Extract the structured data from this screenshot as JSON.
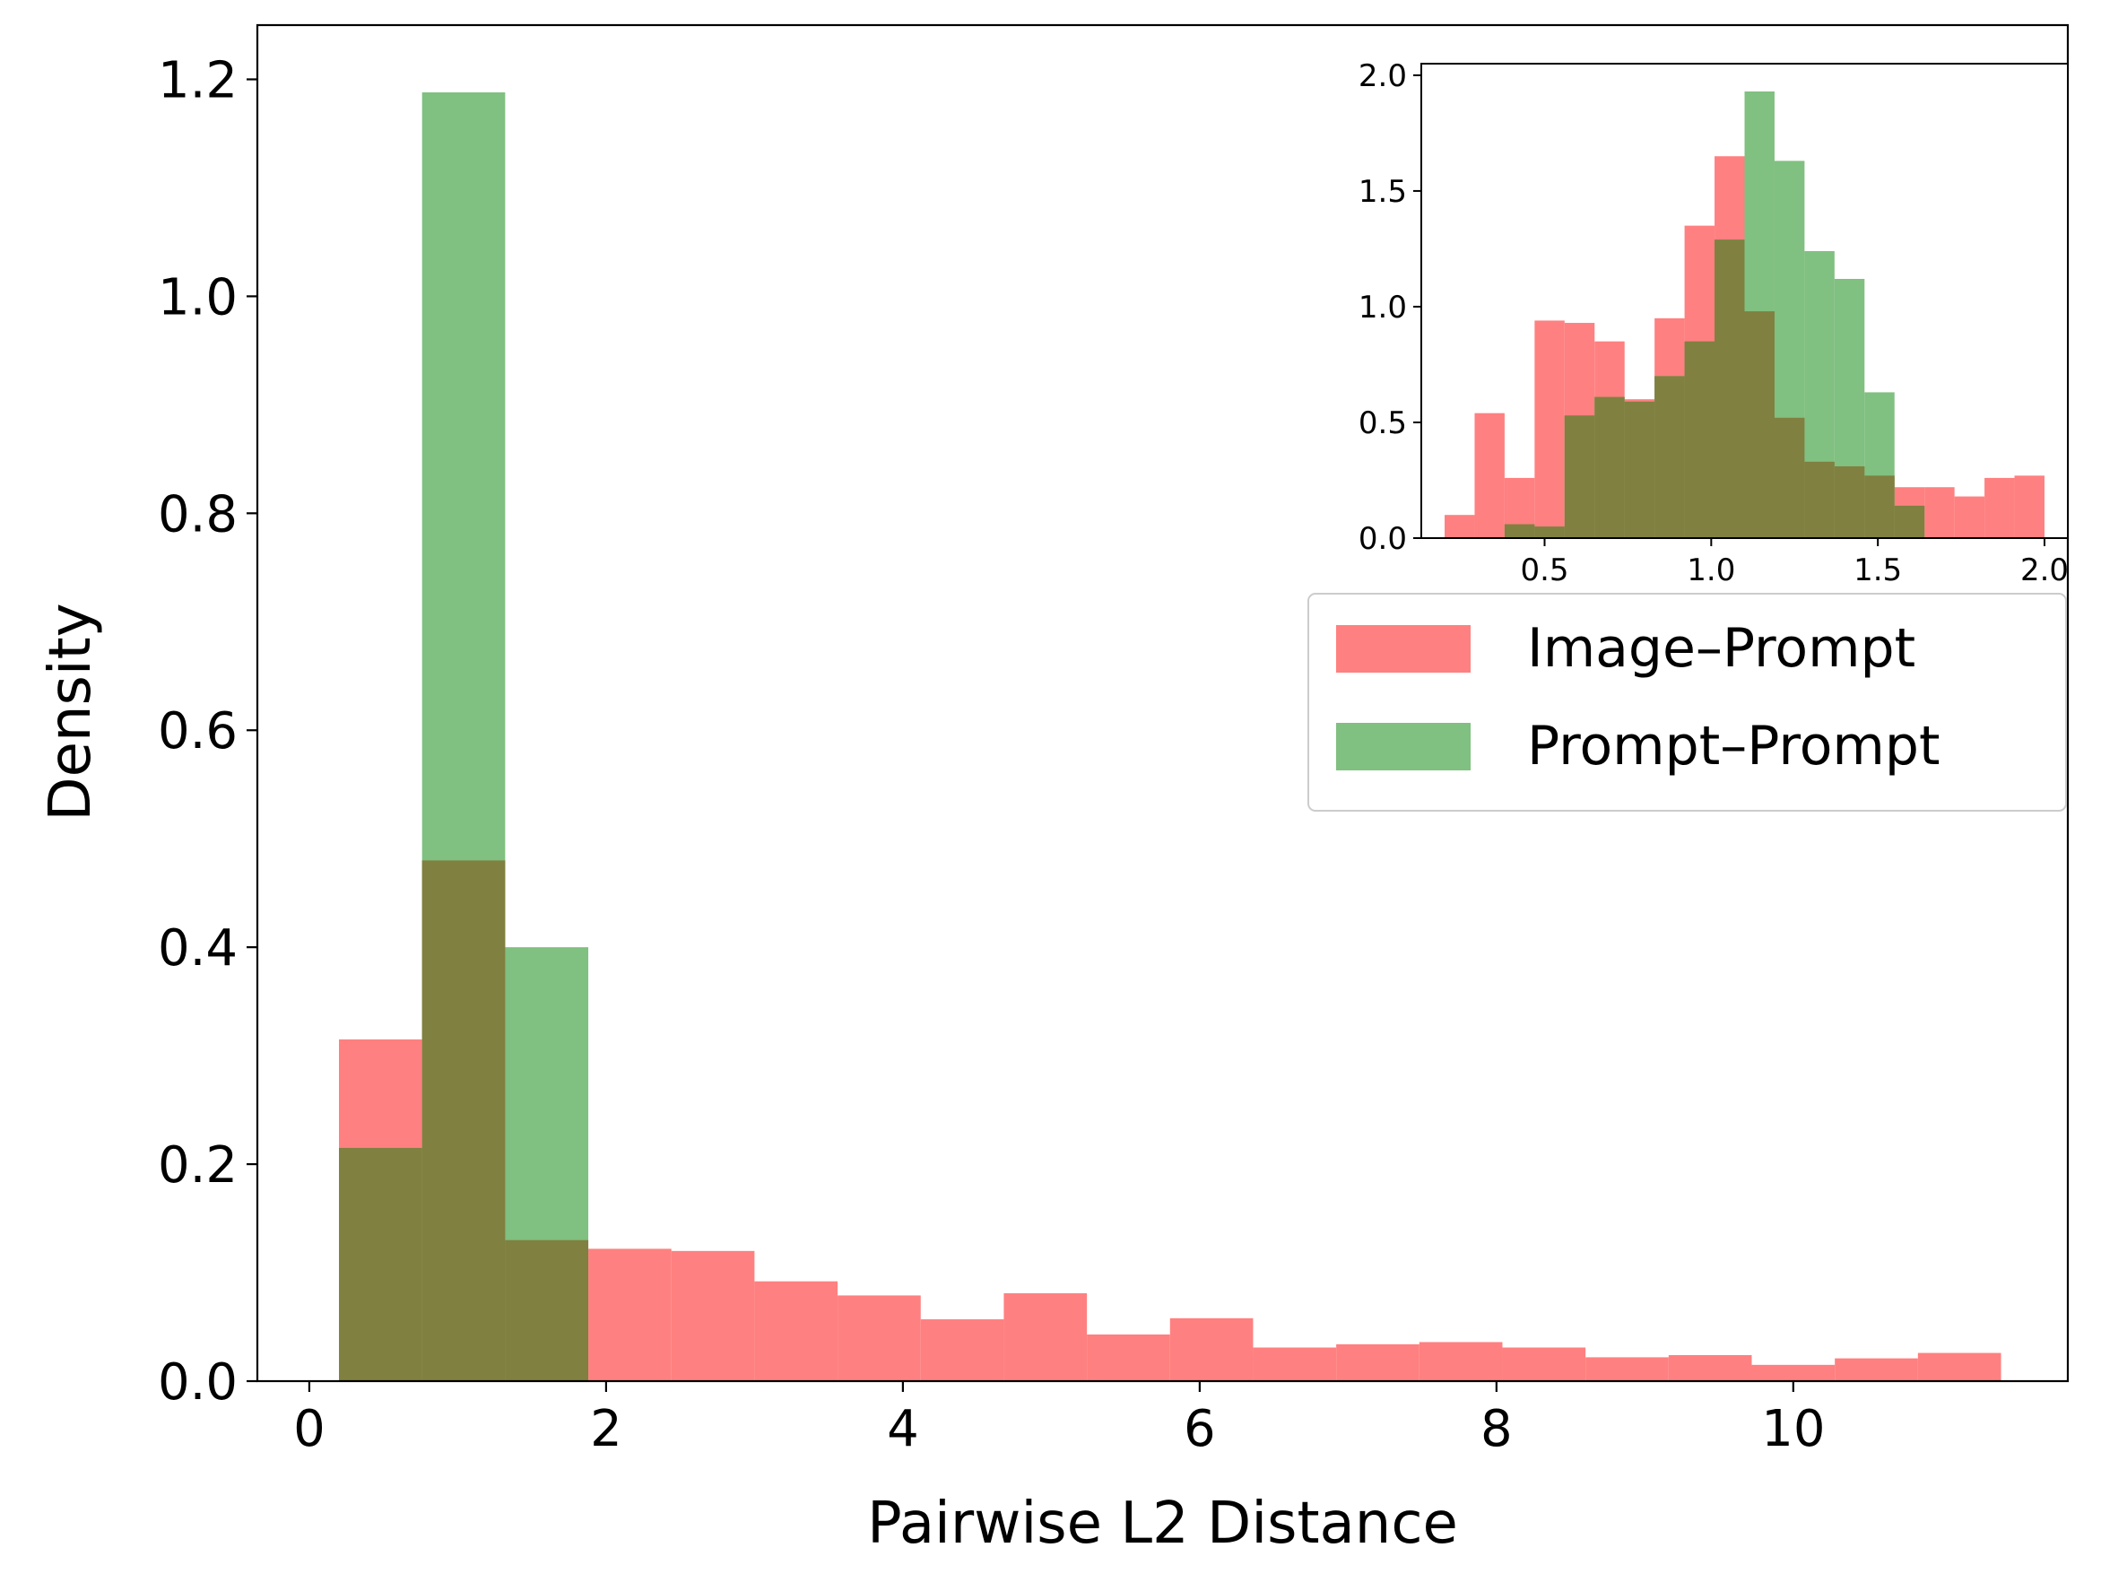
{
  "chart_data": {
    "type": "bar",
    "subtype": "overlapping-histogram",
    "xlabel": "Pairwise L2 Distance",
    "ylabel": "Density",
    "xlim": [
      -0.35,
      11.85
    ],
    "ylim": [
      0,
      1.25
    ],
    "xticks": [
      0,
      2,
      4,
      6,
      8,
      10
    ],
    "yticks": [
      0.0,
      0.2,
      0.4,
      0.6,
      0.8,
      1.0,
      1.2
    ],
    "xtick_labels": [
      "0",
      "2",
      "4",
      "6",
      "8",
      "10"
    ],
    "ytick_labels": [
      "0.0",
      "0.2",
      "0.4",
      "0.6",
      "0.8",
      "1.0",
      "1.2"
    ],
    "grid": false,
    "legend_position": "upper-right",
    "overlap_color": "#808040",
    "series": [
      {
        "name": "Image–Prompt",
        "color": "#ff8080",
        "bins": [
          {
            "x0": 0.2,
            "x1": 0.76,
            "value": 0.315
          },
          {
            "x0": 0.76,
            "x1": 1.32,
            "value": 0.48
          },
          {
            "x0": 1.32,
            "x1": 1.88,
            "value": 0.13
          },
          {
            "x0": 1.88,
            "x1": 2.44,
            "value": 0.122
          },
          {
            "x0": 2.44,
            "x1": 3.0,
            "value": 0.12
          },
          {
            "x0": 3.0,
            "x1": 3.56,
            "value": 0.092
          },
          {
            "x0": 3.56,
            "x1": 4.12,
            "value": 0.079
          },
          {
            "x0": 4.12,
            "x1": 4.68,
            "value": 0.057
          },
          {
            "x0": 4.68,
            "x1": 5.24,
            "value": 0.081
          },
          {
            "x0": 5.24,
            "x1": 5.8,
            "value": 0.043
          },
          {
            "x0": 5.8,
            "x1": 6.36,
            "value": 0.058
          },
          {
            "x0": 6.36,
            "x1": 6.92,
            "value": 0.031
          },
          {
            "x0": 6.92,
            "x1": 7.48,
            "value": 0.034
          },
          {
            "x0": 7.48,
            "x1": 8.04,
            "value": 0.036
          },
          {
            "x0": 8.04,
            "x1": 8.6,
            "value": 0.031
          },
          {
            "x0": 8.6,
            "x1": 9.16,
            "value": 0.022
          },
          {
            "x0": 9.16,
            "x1": 9.72,
            "value": 0.024
          },
          {
            "x0": 9.72,
            "x1": 10.28,
            "value": 0.015
          },
          {
            "x0": 10.28,
            "x1": 10.84,
            "value": 0.021
          },
          {
            "x0": 10.84,
            "x1": 11.4,
            "value": 0.026
          }
        ]
      },
      {
        "name": "Prompt–Prompt",
        "color": "#80c080",
        "bins": [
          {
            "x0": 0.2,
            "x1": 0.76,
            "value": 0.215
          },
          {
            "x0": 0.76,
            "x1": 1.32,
            "value": 1.188
          },
          {
            "x0": 1.32,
            "x1": 1.88,
            "value": 0.4
          }
        ]
      }
    ],
    "inset": {
      "position": "top-right",
      "xlim": [
        0.13,
        2.07
      ],
      "ylim": [
        0,
        2.05
      ],
      "xticks": [
        0.5,
        1.0,
        1.5,
        2.0
      ],
      "yticks": [
        0.0,
        0.5,
        1.0,
        1.5,
        2.0
      ],
      "xtick_labels": [
        "0.5",
        "1.0",
        "1.5",
        "2.0"
      ],
      "ytick_labels": [
        "0.0",
        "0.5",
        "1.0",
        "1.5",
        "2.0"
      ],
      "series": [
        {
          "name": "Image–Prompt",
          "color": "#ff8080",
          "bin_start": 0.2,
          "bin_width": 0.09,
          "values": [
            0.1,
            0.54,
            0.26,
            0.94,
            0.93,
            0.85,
            0.6,
            0.95,
            1.35,
            1.65,
            0.98,
            0.52,
            0.33,
            0.31,
            0.27,
            0.22,
            0.22,
            0.18,
            0.26,
            0.27
          ]
        },
        {
          "name": "Prompt–Prompt",
          "color": "#80c080",
          "bin_start": 0.38,
          "bin_width": 0.09,
          "values": [
            0.06,
            0.05,
            0.53,
            0.61,
            0.59,
            0.7,
            0.85,
            1.29,
            1.93,
            1.63,
            1.24,
            1.12,
            0.63,
            0.14
          ]
        }
      ]
    }
  }
}
